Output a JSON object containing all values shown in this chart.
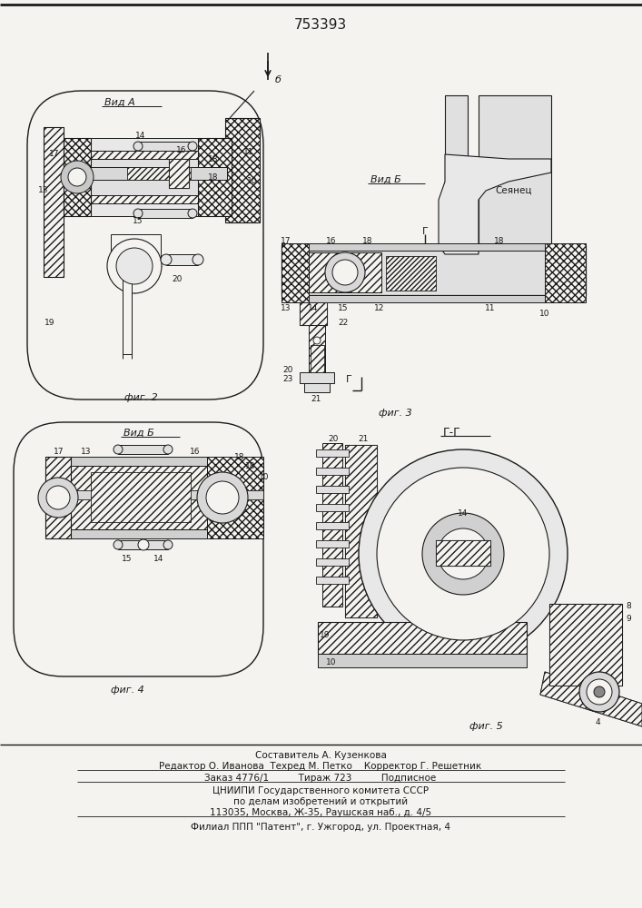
{
  "title": "753393",
  "bg_color": "#f5f3ef",
  "line_color": "#1a1a1a",
  "footer_lines": [
    "Составитель А. Кузенкова",
    "Редактор О. Иванова  Техред М. Петко    Корректор Г. Решетник",
    "Заказ 4776/1          Тираж 723          Подписное",
    "ЦНИИПИ Государственного комитета СССР",
    "по делам изобретений и открытий",
    "113035, Москва, Ж-35, Раушская наб., д. 4/5",
    "Филиал ППП \"Патент\", г. Ужгород, ул. Проектная, 4"
  ]
}
